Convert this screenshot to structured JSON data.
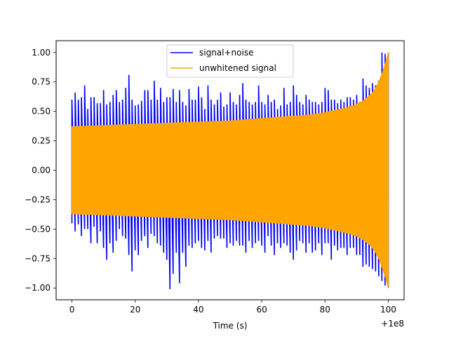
{
  "chart_data": {
    "type": "line",
    "title": "",
    "xlabel": "Time (s)",
    "ylabel": "",
    "x_offset_label": "+1e8",
    "xlim": [
      -5,
      105
    ],
    "ylim": [
      -1.1,
      1.1
    ],
    "xticks": [
      0,
      20,
      40,
      60,
      80,
      100
    ],
    "xtick_labels": [
      "0",
      "20",
      "40",
      "60",
      "80",
      "100"
    ],
    "yticks": [
      -1.0,
      -0.75,
      -0.5,
      -0.25,
      0.0,
      0.25,
      0.5,
      0.75,
      1.0
    ],
    "ytick_labels": [
      "−1.00",
      "−0.75",
      "−0.50",
      "−0.25",
      "0.00",
      "0.25",
      "0.50",
      "0.75",
      "1.00"
    ],
    "grid": false,
    "legend_position": "top-center",
    "series": [
      {
        "name": "signal+noise",
        "color": "#0000ff",
        "x": [
          0,
          1,
          2,
          3,
          4,
          5,
          6,
          7,
          8,
          9,
          10,
          11,
          12,
          13,
          14,
          15,
          16,
          17,
          18,
          19,
          20,
          21,
          22,
          23,
          24,
          25,
          26,
          27,
          28,
          29,
          30,
          31,
          32,
          33,
          34,
          35,
          36,
          37,
          38,
          39,
          40,
          41,
          42,
          43,
          44,
          45,
          46,
          47,
          48,
          49,
          50,
          51,
          52,
          53,
          54,
          55,
          56,
          57,
          58,
          59,
          60,
          61,
          62,
          63,
          64,
          65,
          66,
          67,
          68,
          69,
          70,
          71,
          72,
          73,
          74,
          75,
          76,
          77,
          78,
          79,
          80,
          81,
          82,
          83,
          84,
          85,
          86,
          87,
          88,
          89,
          90,
          91,
          92,
          93,
          94,
          95,
          96,
          97,
          98,
          99,
          100
        ],
        "upper": [
          0.6,
          0.66,
          0.6,
          0.62,
          0.72,
          0.52,
          0.62,
          0.62,
          0.57,
          0.57,
          0.68,
          0.56,
          0.58,
          0.64,
          0.68,
          0.58,
          0.6,
          0.7,
          0.81,
          0.6,
          0.55,
          0.56,
          0.59,
          0.68,
          0.68,
          0.6,
          0.76,
          0.6,
          0.7,
          0.58,
          0.62,
          0.62,
          0.69,
          0.58,
          0.68,
          0.58,
          0.55,
          0.69,
          0.6,
          0.6,
          0.71,
          0.62,
          0.52,
          0.72,
          0.6,
          0.56,
          0.6,
          0.66,
          0.54,
          0.56,
          0.66,
          0.58,
          0.56,
          0.64,
          0.74,
          0.6,
          0.58,
          0.56,
          0.58,
          0.72,
          0.58,
          0.56,
          0.64,
          0.58,
          0.6,
          0.52,
          0.55,
          0.7,
          0.56,
          0.58,
          0.72,
          0.64,
          0.58,
          0.56,
          0.64,
          0.6,
          0.58,
          0.58,
          0.56,
          0.58,
          0.7,
          0.68,
          0.6,
          0.6,
          0.57,
          0.6,
          0.58,
          0.62,
          0.62,
          0.6,
          0.64,
          0.58,
          0.78,
          0.72,
          0.7,
          0.74,
          0.72,
          0.76,
          1.0,
          0.99,
          1.0
        ],
        "lower": [
          -0.45,
          -0.52,
          -0.46,
          -0.56,
          -0.5,
          -0.5,
          -0.62,
          -0.48,
          -0.62,
          -0.52,
          -0.66,
          -0.76,
          -0.62,
          -0.7,
          -0.6,
          -0.5,
          -0.56,
          -0.58,
          -0.72,
          -0.86,
          -0.68,
          -0.72,
          -0.6,
          -0.56,
          -0.66,
          -0.54,
          -0.56,
          -0.62,
          -0.64,
          -0.7,
          -0.76,
          -1.01,
          -0.88,
          -0.7,
          -0.96,
          -0.7,
          -0.82,
          -0.64,
          -0.66,
          -0.62,
          -0.6,
          -0.66,
          -0.68,
          -0.6,
          -0.7,
          -0.58,
          -0.56,
          -0.58,
          -0.58,
          -0.66,
          -0.62,
          -0.64,
          -0.6,
          -0.64,
          -0.64,
          -0.7,
          -0.6,
          -0.66,
          -0.62,
          -0.6,
          -0.64,
          -0.7,
          -0.56,
          -0.64,
          -0.72,
          -0.62,
          -0.66,
          -0.62,
          -0.64,
          -0.7,
          -0.76,
          -0.68,
          -0.6,
          -0.62,
          -0.7,
          -0.62,
          -0.7,
          -0.68,
          -0.62,
          -0.72,
          -0.62,
          -0.62,
          -0.76,
          -0.64,
          -0.68,
          -0.66,
          -0.66,
          -0.72,
          -0.66,
          -0.66,
          -0.72,
          -0.72,
          -0.82,
          -0.8,
          -0.82,
          -0.84,
          -0.86,
          -0.9,
          -0.94,
          -0.98,
          -1.0
        ]
      },
      {
        "name": "unwhitened signal",
        "color": "#ffa500",
        "x": [
          0,
          10,
          20,
          30,
          40,
          50,
          60,
          70,
          75,
          80,
          85,
          88,
          90,
          92,
          94,
          95,
          96,
          97,
          98,
          99,
          100
        ],
        "amplitude": [
          0.37,
          0.38,
          0.39,
          0.4,
          0.41,
          0.42,
          0.44,
          0.46,
          0.47,
          0.49,
          0.52,
          0.54,
          0.56,
          0.59,
          0.63,
          0.66,
          0.7,
          0.75,
          0.82,
          0.9,
          1.0
        ]
      }
    ]
  }
}
